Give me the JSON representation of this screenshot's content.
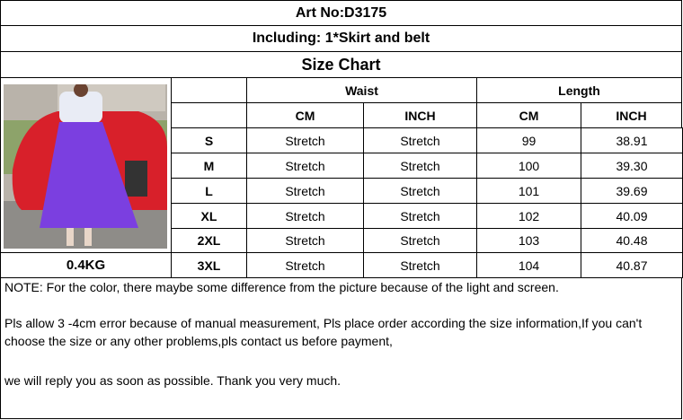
{
  "header": {
    "art_no": "Art No:D3175",
    "including": "Including:  1*Skirt and belt",
    "size_chart_title": "Size Chart"
  },
  "weight": "0.4KG",
  "table": {
    "groups": [
      "Waist",
      "Length"
    ],
    "units": [
      "CM",
      "INCH",
      "CM",
      "INCH"
    ],
    "rows": [
      {
        "size": "S",
        "waist_cm": "Stretch",
        "waist_inch": "Stretch",
        "length_cm": "99",
        "length_inch": "38.91"
      },
      {
        "size": "M",
        "waist_cm": "Stretch",
        "waist_inch": "Stretch",
        "length_cm": "100",
        "length_inch": "39.30"
      },
      {
        "size": "L",
        "waist_cm": "Stretch",
        "waist_inch": "Stretch",
        "length_cm": "101",
        "length_inch": "39.69"
      },
      {
        "size": "XL",
        "waist_cm": "Stretch",
        "waist_inch": "Stretch",
        "length_cm": "102",
        "length_inch": "40.09"
      },
      {
        "size": "2XL",
        "waist_cm": "Stretch",
        "waist_inch": "Stretch",
        "length_cm": "103",
        "length_inch": "40.48"
      },
      {
        "size": "3XL",
        "waist_cm": "Stretch",
        "waist_inch": "Stretch",
        "length_cm": "104",
        "length_inch": "40.87"
      }
    ]
  },
  "notes": [
    "NOTE:  For the color, there maybe some difference from the picture because of the light and screen.",
    "Pls allow 3 -4cm error because of manual measurement, Pls place order according the size information,If you can't choose the size or any other problems,pls contact us before payment,",
    "we will reply you as soon as possible. Thank you very much."
  ],
  "colors": {
    "skirt": "#7b3fe0",
    "car": "#d8202a"
  }
}
